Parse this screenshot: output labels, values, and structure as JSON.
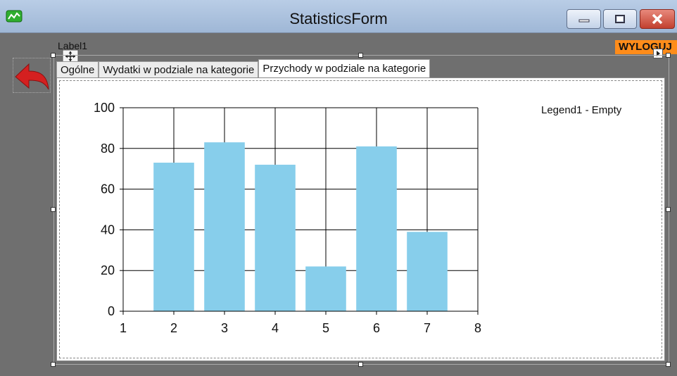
{
  "window": {
    "title": "StatisticsForm",
    "app_icon": "chart-line-icon",
    "buttons": [
      "minimize-icon",
      "maximize-icon",
      "close-icon"
    ]
  },
  "label1": "Label1",
  "logout_label": "WYLOGUJ",
  "back_icon": "back-arrow-icon",
  "tabs": [
    {
      "label": "Ogólne",
      "active": false
    },
    {
      "label": "Wydatki w podziale na kategorie",
      "active": false
    },
    {
      "label": "Przychody w podziale na kategorie",
      "active": true
    }
  ],
  "legend": "Legend1 - Empty",
  "colors": {
    "bar": "#87ceeb",
    "logout_bg": "#ff8c1a",
    "back_arrow": "#d42020"
  },
  "chart_data": {
    "type": "bar",
    "x": [
      2,
      3,
      4,
      5,
      6,
      7
    ],
    "values": [
      73,
      83,
      72,
      22,
      81,
      39
    ],
    "xlim": [
      1,
      8
    ],
    "ylim": [
      0,
      100
    ],
    "xticks": [
      1,
      2,
      3,
      4,
      5,
      6,
      7,
      8
    ],
    "yticks": [
      0,
      20,
      40,
      60,
      80,
      100
    ],
    "grid": true,
    "title": "",
    "xlabel": "",
    "ylabel": ""
  }
}
